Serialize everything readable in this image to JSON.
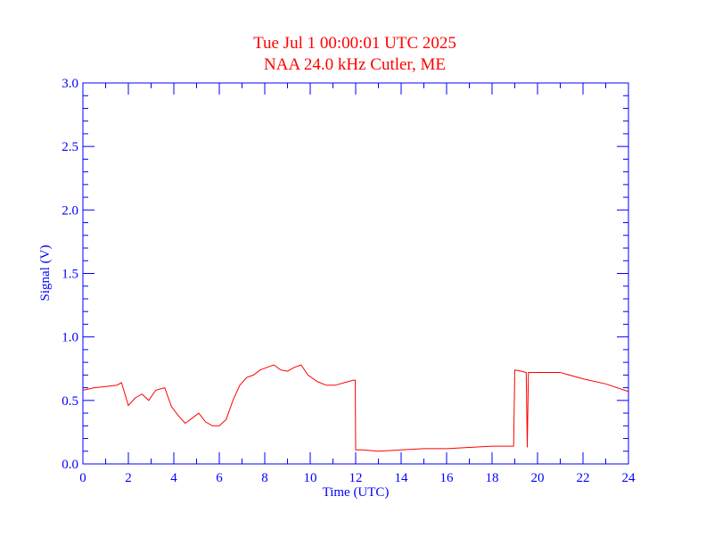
{
  "chart_data": {
    "type": "line",
    "title": "Tue Jul 1 00:00:01 UTC 2025",
    "subtitle": "NAA 24.0 kHz Cutler, ME",
    "xlabel": "Time (UTC)",
    "ylabel": "Signal (V)",
    "xlim": [
      0,
      24
    ],
    "ylim": [
      0,
      3.0
    ],
    "x_ticks": [
      "0",
      "2",
      "4",
      "6",
      "8",
      "10",
      "12",
      "14",
      "16",
      "18",
      "20",
      "22",
      "24"
    ],
    "y_ticks": [
      "0.0",
      "0.5",
      "1.0",
      "1.5",
      "2.0",
      "2.5",
      "3.0"
    ],
    "grid": false,
    "colors": {
      "axes": "#0000ff",
      "title": "#ff0000",
      "line": "#ff0000"
    },
    "series": [
      {
        "x": [
          0,
          0.5,
          1.0,
          1.5,
          1.7,
          2.0,
          2.3,
          2.6,
          2.9,
          3.2,
          3.6,
          3.9,
          4.2,
          4.5,
          4.8,
          5.1,
          5.4,
          5.7,
          6.0,
          6.3,
          6.6,
          6.9,
          7.2,
          7.5,
          7.8,
          8.1,
          8.4,
          8.7,
          9.0,
          9.3,
          9.6,
          9.9,
          10.3,
          10.7,
          11.1,
          11.5,
          11.9,
          11.98,
          12.0,
          12.3,
          13.0,
          14.0,
          15.0,
          16.0,
          17.0,
          18.0,
          18.5,
          18.95,
          19.0,
          19.3,
          19.5,
          19.55,
          19.6,
          20.0,
          21.0,
          22.0,
          23.0,
          24.0
        ],
        "values": [
          0.58,
          0.6,
          0.61,
          0.62,
          0.64,
          0.46,
          0.52,
          0.55,
          0.5,
          0.58,
          0.6,
          0.45,
          0.38,
          0.32,
          0.36,
          0.4,
          0.33,
          0.3,
          0.3,
          0.35,
          0.5,
          0.62,
          0.68,
          0.7,
          0.74,
          0.76,
          0.78,
          0.74,
          0.73,
          0.76,
          0.78,
          0.7,
          0.65,
          0.62,
          0.62,
          0.64,
          0.66,
          0.66,
          0.11,
          0.11,
          0.1,
          0.11,
          0.12,
          0.12,
          0.13,
          0.14,
          0.14,
          0.14,
          0.74,
          0.73,
          0.72,
          0.13,
          0.72,
          0.72,
          0.72,
          0.67,
          0.63,
          0.57
        ]
      }
    ]
  }
}
